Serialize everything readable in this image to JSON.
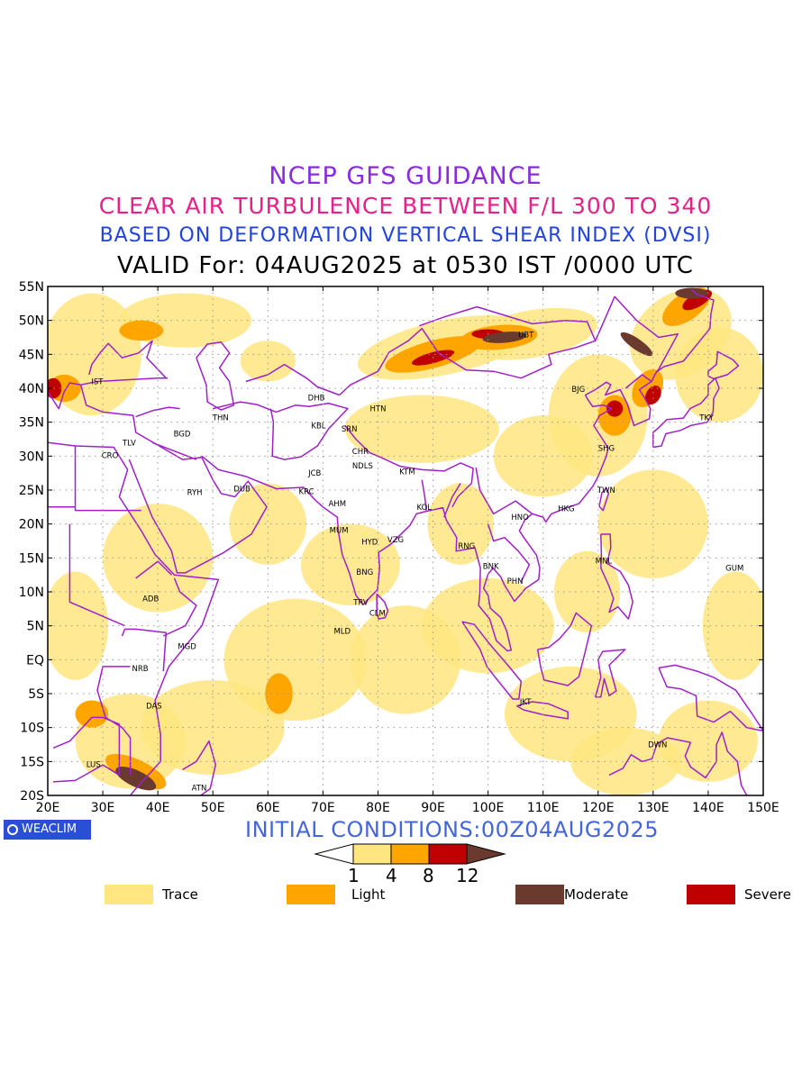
{
  "titles": {
    "line1": "NCEP GFS GUIDANCE",
    "line2": "CLEAR AIR TURBULENCE BETWEEN F/L 300 TO 340",
    "line3": "BASED ON DEFORMATION VERTICAL SHEAR INDEX (DVSI)",
    "line4": "VALID For: 04AUG2025 at 0530 IST /0000 UTC"
  },
  "axes": {
    "lat_labels": [
      "55N",
      "50N",
      "45N",
      "40N",
      "35N",
      "30N",
      "25N",
      "20N",
      "15N",
      "10N",
      "5N",
      "EQ",
      "5S",
      "10S",
      "15S",
      "20S"
    ],
    "lon_labels": [
      "20E",
      "30E",
      "40E",
      "50E",
      "60E",
      "70E",
      "80E",
      "90E",
      "100E",
      "110E",
      "120E",
      "130E",
      "140E",
      "150E"
    ]
  },
  "stations": [
    {
      "code": "IST",
      "lon": 29,
      "lat": 41
    },
    {
      "code": "TLV",
      "lon": 34.8,
      "lat": 32
    },
    {
      "code": "CRO",
      "lon": 31.3,
      "lat": 30.1
    },
    {
      "code": "BGD",
      "lon": 44.4,
      "lat": 33.3
    },
    {
      "code": "THN",
      "lon": 51.4,
      "lat": 35.7
    },
    {
      "code": "RYH",
      "lon": 46.7,
      "lat": 24.7
    },
    {
      "code": "DUB",
      "lon": 55.3,
      "lat": 25.2
    },
    {
      "code": "DHB",
      "lon": 68.8,
      "lat": 38.6
    },
    {
      "code": "KBL",
      "lon": 69.2,
      "lat": 34.5
    },
    {
      "code": "SRN",
      "lon": 74.8,
      "lat": 34
    },
    {
      "code": "HTN",
      "lon": 80,
      "lat": 37
    },
    {
      "code": "JCB",
      "lon": 68.5,
      "lat": 27.5
    },
    {
      "code": "CHR",
      "lon": 76.8,
      "lat": 30.7
    },
    {
      "code": "NDLS",
      "lon": 77.2,
      "lat": 28.6
    },
    {
      "code": "KTM",
      "lon": 85.3,
      "lat": 27.7
    },
    {
      "code": "KRC",
      "lon": 67,
      "lat": 24.8
    },
    {
      "code": "AHM",
      "lon": 72.6,
      "lat": 23
    },
    {
      "code": "KOL",
      "lon": 88.4,
      "lat": 22.5
    },
    {
      "code": "MUM",
      "lon": 72.9,
      "lat": 19.1
    },
    {
      "code": "HYD",
      "lon": 78.5,
      "lat": 17.4
    },
    {
      "code": "VZG",
      "lon": 83.2,
      "lat": 17.7
    },
    {
      "code": "RNG",
      "lon": 96.1,
      "lat": 16.8
    },
    {
      "code": "BNG",
      "lon": 77.6,
      "lat": 12.9
    },
    {
      "code": "TRV",
      "lon": 76.9,
      "lat": 8.5
    },
    {
      "code": "CLM",
      "lon": 79.9,
      "lat": 6.9
    },
    {
      "code": "MLD",
      "lon": 73.5,
      "lat": 4.2
    },
    {
      "code": "BNK",
      "lon": 100.5,
      "lat": 13.8
    },
    {
      "code": "PHN",
      "lon": 104.9,
      "lat": 11.6
    },
    {
      "code": "HNO",
      "lon": 105.8,
      "lat": 21
    },
    {
      "code": "HKG",
      "lon": 114.2,
      "lat": 22.3
    },
    {
      "code": "TWN",
      "lon": 121.5,
      "lat": 25
    },
    {
      "code": "SHG",
      "lon": 121.5,
      "lat": 31.2
    },
    {
      "code": "BJG",
      "lon": 116.4,
      "lat": 39.9
    },
    {
      "code": "UBT",
      "lon": 106.9,
      "lat": 47.9
    },
    {
      "code": "TKY",
      "lon": 139.7,
      "lat": 35.7
    },
    {
      "code": "MNL",
      "lon": 121,
      "lat": 14.6
    },
    {
      "code": "GUM",
      "lon": 144.8,
      "lat": 13.5
    },
    {
      "code": "JKT",
      "lon": 106.8,
      "lat": -6.2
    },
    {
      "code": "DWN",
      "lon": 130.8,
      "lat": -12.5
    },
    {
      "code": "ADB",
      "lon": 38.7,
      "lat": 9
    },
    {
      "code": "MGD",
      "lon": 45.3,
      "lat": 2
    },
    {
      "code": "NRB",
      "lon": 36.8,
      "lat": -1.3
    },
    {
      "code": "DAS",
      "lon": 39.3,
      "lat": -6.8
    },
    {
      "code": "LUS",
      "lon": 28.3,
      "lat": -15.4
    },
    {
      "code": "ATN",
      "lon": 47.5,
      "lat": -18.9
    }
  ],
  "extent": {
    "lon_min": 20,
    "lon_max": 150,
    "lat_min": -20,
    "lat_max": 55
  },
  "turbulence_areas": [
    {
      "level": "moderate",
      "lon": 36,
      "lat": -17.5,
      "rlon": 4,
      "rlat": 1.2,
      "rot": 25
    },
    {
      "level": "moderate",
      "lon": 103,
      "lat": 47.5,
      "rlon": 4,
      "rlat": 0.8,
      "rot": -5
    },
    {
      "level": "moderate",
      "lon": 127,
      "lat": 46.5,
      "rlon": 3.5,
      "rlat": 0.8,
      "rot": 35
    },
    {
      "level": "moderate",
      "lon": 137,
      "lat": 54,
      "rlon": 3,
      "rlat": 0.8,
      "rot": 0
    },
    {
      "level": "severe",
      "lon": 90,
      "lat": 44.5,
      "rlon": 4,
      "rlat": 0.8,
      "rot": -15
    },
    {
      "level": "severe",
      "lon": 100,
      "lat": 48,
      "rlon": 3,
      "rlat": 0.7,
      "rot": 0
    },
    {
      "level": "severe",
      "lon": 123,
      "lat": 37,
      "rlon": 1.5,
      "rlat": 1.2,
      "rot": 0
    },
    {
      "level": "severe",
      "lon": 130,
      "lat": 39,
      "rlon": 1.3,
      "rlat": 1.5,
      "rot": 30
    },
    {
      "level": "severe",
      "lon": 21,
      "lat": 40,
      "rlon": 1.5,
      "rlat": 1.5,
      "rot": 0
    },
    {
      "level": "severe",
      "lon": 138,
      "lat": 53,
      "rlon": 3,
      "rlat": 1,
      "rot": -30
    },
    {
      "level": "light",
      "lon": 90,
      "lat": 45,
      "rlon": 9,
      "rlat": 2,
      "rot": -15
    },
    {
      "level": "light",
      "lon": 102,
      "lat": 47.5,
      "rlon": 7,
      "rlat": 1.8,
      "rot": -5
    },
    {
      "level": "light",
      "lon": 123,
      "lat": 36,
      "rlon": 3,
      "rlat": 3,
      "rot": 0
    },
    {
      "level": "light",
      "lon": 129,
      "lat": 40,
      "rlon": 2.5,
      "rlat": 3,
      "rot": 30
    },
    {
      "level": "light",
      "lon": 62,
      "lat": -5,
      "rlon": 2.5,
      "rlat": 3,
      "rot": 0
    },
    {
      "level": "light",
      "lon": 37,
      "lat": 48.5,
      "rlon": 4,
      "rlat": 1.5,
      "rot": 0
    },
    {
      "level": "light",
      "lon": 23,
      "lat": 40,
      "rlon": 3,
      "rlat": 2,
      "rot": 0
    },
    {
      "level": "light",
      "lon": 36,
      "lat": -16.5,
      "rlon": 6,
      "rlat": 1.8,
      "rot": 25
    },
    {
      "level": "light",
      "lon": 136,
      "lat": 52,
      "rlon": 5,
      "rlat": 2,
      "rot": -35
    },
    {
      "level": "light",
      "lon": 28,
      "lat": -8,
      "rlon": 3,
      "rlat": 2,
      "rot": 0
    },
    {
      "level": "trace",
      "lon": 28,
      "lat": 45,
      "rlon": 9,
      "rlat": 9,
      "rot": 0
    },
    {
      "level": "trace",
      "lon": 45,
      "lat": 50,
      "rlon": 12,
      "rlat": 4,
      "rot": 0
    },
    {
      "level": "trace",
      "lon": 60,
      "lat": 44,
      "rlon": 5,
      "rlat": 3,
      "rot": 0
    },
    {
      "level": "trace",
      "lon": 92,
      "lat": 46,
      "rlon": 16,
      "rlat": 4,
      "rot": -12
    },
    {
      "level": "trace",
      "lon": 108,
      "lat": 48,
      "rlon": 12,
      "rlat": 3.5,
      "rot": -10
    },
    {
      "level": "trace",
      "lon": 120,
      "lat": 36,
      "rlon": 9,
      "rlat": 9,
      "rot": 0
    },
    {
      "level": "trace",
      "lon": 135,
      "lat": 48,
      "rlon": 10,
      "rlat": 6,
      "rot": -35
    },
    {
      "level": "trace",
      "lon": 142,
      "lat": 42,
      "rlon": 8,
      "rlat": 7,
      "rot": 0
    },
    {
      "level": "trace",
      "lon": 88,
      "lat": 34,
      "rlon": 14,
      "rlat": 5,
      "rot": 0
    },
    {
      "level": "trace",
      "lon": 110,
      "lat": 30,
      "rlon": 9,
      "rlat": 6,
      "rot": 0
    },
    {
      "level": "trace",
      "lon": 75,
      "lat": 14,
      "rlon": 9,
      "rlat": 6,
      "rot": 0
    },
    {
      "level": "trace",
      "lon": 65,
      "lat": 0,
      "rlon": 13,
      "rlat": 9,
      "rot": 0
    },
    {
      "level": "trace",
      "lon": 50,
      "lat": -10,
      "rlon": 13,
      "rlat": 7,
      "rot": 0
    },
    {
      "level": "trace",
      "lon": 35,
      "lat": -12,
      "rlon": 10,
      "rlat": 7,
      "rot": 0
    },
    {
      "level": "trace",
      "lon": 85,
      "lat": 0,
      "rlon": 10,
      "rlat": 8,
      "rot": 0
    },
    {
      "level": "trace",
      "lon": 100,
      "lat": 5,
      "rlon": 12,
      "rlat": 7,
      "rot": 0
    },
    {
      "level": "trace",
      "lon": 115,
      "lat": -8,
      "rlon": 12,
      "rlat": 7,
      "rot": 0
    },
    {
      "level": "trace",
      "lon": 125,
      "lat": -15,
      "rlon": 10,
      "rlat": 5,
      "rot": 0
    },
    {
      "level": "trace",
      "lon": 140,
      "lat": -12,
      "rlon": 9,
      "rlat": 6,
      "rot": 0
    },
    {
      "level": "trace",
      "lon": 130,
      "lat": 20,
      "rlon": 10,
      "rlat": 8,
      "rot": 0
    },
    {
      "level": "trace",
      "lon": 145,
      "lat": 5,
      "rlon": 6,
      "rlat": 8,
      "rot": 0
    },
    {
      "level": "trace",
      "lon": 40,
      "lat": 15,
      "rlon": 10,
      "rlat": 8,
      "rot": 0
    },
    {
      "level": "trace",
      "lon": 60,
      "lat": 20,
      "rlon": 7,
      "rlat": 6,
      "rot": 0
    },
    {
      "level": "trace",
      "lon": 25,
      "lat": 5,
      "rlon": 6,
      "rlat": 8,
      "rot": 0
    },
    {
      "level": "trace",
      "lon": 95,
      "lat": 20,
      "rlon": 6,
      "rlat": 6,
      "rot": 0
    },
    {
      "level": "trace",
      "lon": 118,
      "lat": 10,
      "rlon": 6,
      "rlat": 6,
      "rot": 0
    }
  ],
  "colors": {
    "trace": "#ffe680",
    "light": "#ffa500",
    "severe": "#c00000",
    "moderate": "#6b3a2e",
    "border": "#a020c8",
    "gridline": "#999999"
  },
  "colorbar": {
    "ticks": [
      "1",
      "4",
      "8",
      "12"
    ]
  },
  "initial_conditions": "INITIAL CONDITIONS:00Z04AUG2025",
  "logo_text": "WEACLIM",
  "legend": [
    {
      "label": "Trace",
      "color": "#ffe680"
    },
    {
      "label": "Light",
      "color": "#ffa500"
    },
    {
      "label": "Moderate",
      "color": "#6b3a2e"
    },
    {
      "label": "Severe",
      "color": "#c00000"
    }
  ]
}
